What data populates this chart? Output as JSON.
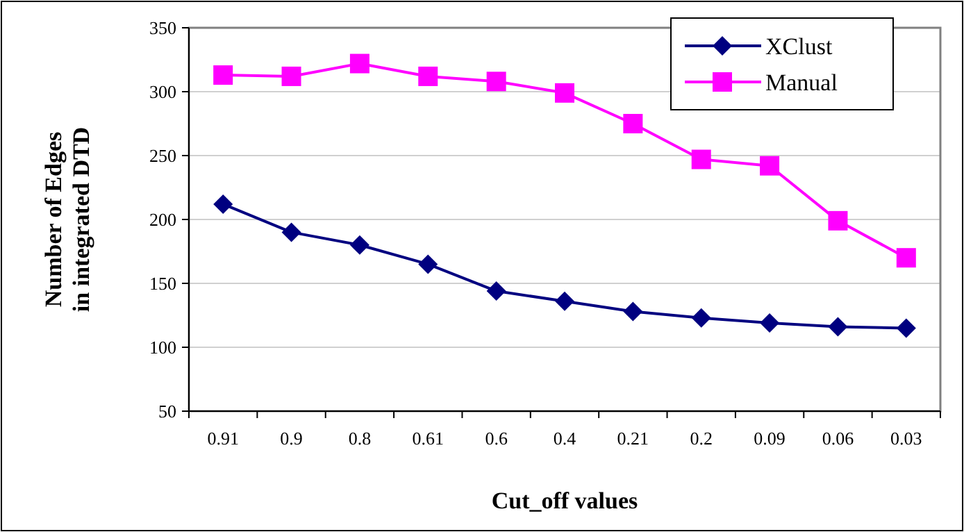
{
  "chart_data": {
    "type": "line",
    "xlabel": "Cut_off values",
    "ylabel": "Number of Edges\nin integrated DTD",
    "categories": [
      "0.91",
      "0.9",
      "0.8",
      "0.61",
      "0.6",
      "0.4",
      "0.21",
      "0.2",
      "0.09",
      "0.06",
      "0.03"
    ],
    "series": [
      {
        "name": "XClust",
        "color": "#000080",
        "marker": "diamond",
        "values": [
          212,
          190,
          180,
          165,
          144,
          136,
          128,
          123,
          119,
          116,
          115
        ]
      },
      {
        "name": "Manual",
        "color": "#ff00ff",
        "marker": "square",
        "values": [
          313,
          312,
          322,
          312,
          308,
          299,
          275,
          247,
          242,
          199,
          170
        ]
      }
    ],
    "ylim": [
      50,
      350
    ],
    "yticks": [
      50,
      100,
      150,
      200,
      250,
      300,
      350
    ],
    "grid": "y",
    "legend": "top right",
    "line_style": "solid"
  }
}
